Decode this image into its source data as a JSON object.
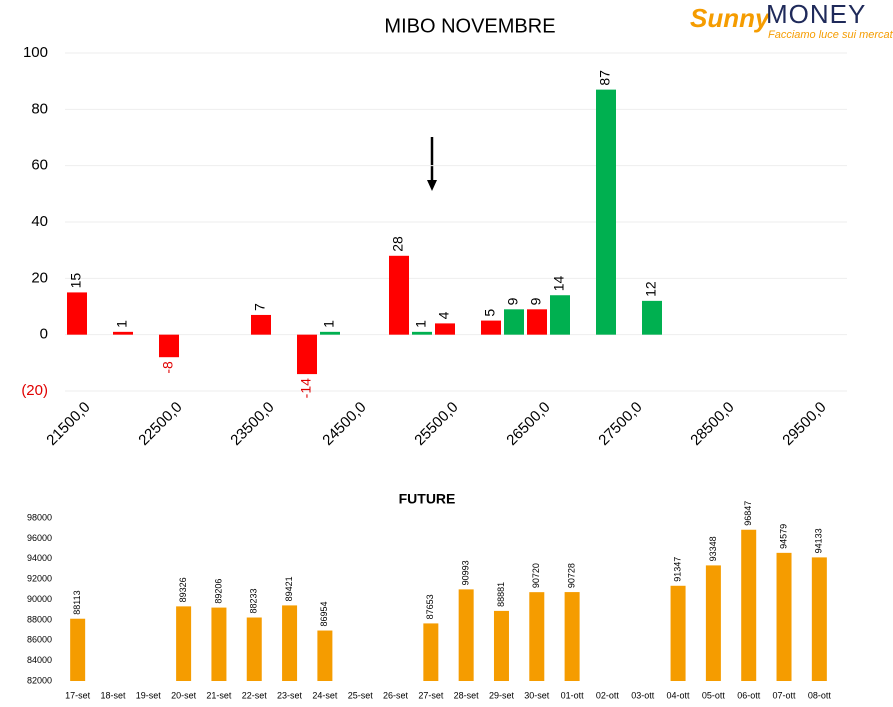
{
  "logo": {
    "brand": "Sunny",
    "name": "MONEY",
    "tagline": "Facciamo luce sui mercati"
  },
  "chart_data": [
    {
      "type": "bar",
      "title": "MIBO NOVEMBRE",
      "categories": [
        "21500,0",
        null,
        "22500,0",
        null,
        "23500,0",
        null,
        "24500,0",
        null,
        "25500,0",
        null,
        "26500,0",
        null,
        "27500,0",
        null,
        "28500,0",
        null,
        "29500,0"
      ],
      "series": [
        {
          "color": "#ff0000",
          "values": [
            15,
            1,
            -8,
            null,
            7,
            -14,
            null,
            28,
            4,
            5,
            9,
            null,
            null,
            null,
            null,
            null,
            null
          ]
        },
        {
          "color": "#00b050",
          "values": [
            null,
            null,
            null,
            null,
            null,
            1,
            null,
            1,
            null,
            9,
            14,
            87,
            12,
            null,
            null,
            null,
            null
          ]
        }
      ],
      "ylim": [
        -20,
        100
      ],
      "yticks": [
        100,
        80,
        60,
        40,
        20,
        0,
        {
          "value": -20,
          "label": "(20)"
        }
      ],
      "grid": true,
      "negative_label_color": "#e00000"
    },
    {
      "type": "bar",
      "title": "FUTURE",
      "categories": [
        "17-set",
        "18-set",
        "19-set",
        "20-set",
        "21-set",
        "22-set",
        "23-set",
        "24-set",
        "25-set",
        "26-set",
        "27-set",
        "28-set",
        "29-set",
        "30-set",
        "01-ott",
        "02-ott",
        "03-ott",
        "04-ott",
        "05-ott",
        "06-ott",
        "07-ott",
        "08-ott"
      ],
      "series": [
        {
          "color": "#f59c00",
          "values": [
            88113,
            null,
            null,
            89326,
            89206,
            88233,
            89421,
            86954,
            null,
            null,
            87653,
            90993,
            88881,
            90720,
            90728,
            null,
            null,
            91347,
            93348,
            96847,
            94579,
            94133
          ]
        }
      ],
      "ylim": [
        82000,
        98000
      ],
      "yticks": [
        82000,
        84000,
        86000,
        88000,
        90000,
        92000,
        94000,
        96000,
        98000
      ],
      "grid": false
    }
  ]
}
